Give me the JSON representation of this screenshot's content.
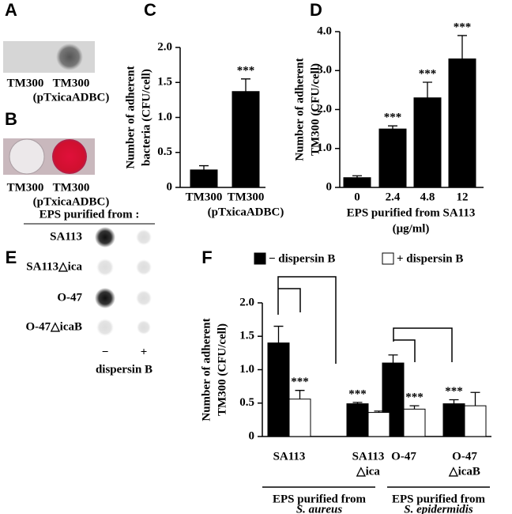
{
  "panels": {
    "letters": [
      "A",
      "B",
      "C",
      "D",
      "E",
      "F"
    ],
    "a_labels": [
      [
        "TM300"
      ],
      [
        "TM300",
        "(pTxicaADBC)"
      ]
    ],
    "b_labels": [
      [
        "TM300"
      ],
      [
        "TM300",
        "(pTxicaADBC)"
      ]
    ],
    "e_heading": "EPS purified from :",
    "e_rows": [
      "SA113",
      "SA113△ica",
      "O-47",
      "O-47△icaB"
    ],
    "e_columns": [
      "−",
      "+"
    ],
    "e_footer": "dispersin B"
  },
  "chart_data": [
    {
      "type": "bar",
      "ylabel": [
        "Number of adherent",
        "bacteria (CFU/cell)"
      ],
      "categories": [
        [
          "TM300"
        ],
        [
          "TM300",
          "(pTxicaADBC)"
        ]
      ],
      "series": [
        {
          "name": null,
          "color": "#000000",
          "values": [
            0.25,
            1.37
          ],
          "errors": [
            0.06,
            0.18
          ],
          "annotations": [
            null,
            "***"
          ]
        }
      ],
      "ylim": [
        0,
        2.0
      ],
      "yticks": [
        0,
        0.5,
        {
          "value": 1.0,
          "label": "1.0"
        },
        1.5,
        {
          "value": 2.0,
          "label": "2.0"
        }
      ]
    },
    {
      "type": "bar",
      "ylabel": [
        "Number of adherent",
        "TM300 (CFU/cell)"
      ],
      "categories": [
        [
          "0"
        ],
        [
          "2.4"
        ],
        [
          "4.8"
        ],
        [
          "12"
        ]
      ],
      "xlabel": [
        "EPS  purified from SA113",
        "(μg/ml)"
      ],
      "series": [
        {
          "name": null,
          "color": "#000000",
          "values": [
            0.25,
            1.5,
            2.3,
            3.3
          ],
          "errors": [
            0.05,
            0.08,
            0.4,
            0.6
          ],
          "annotations": [
            null,
            "***",
            "***",
            "***"
          ]
        }
      ],
      "ylim": [
        0,
        4.0
      ],
      "yticks": [
        0,
        {
          "value": 1.0,
          "label": "1.0"
        },
        {
          "value": 2.0,
          "label": "2.0"
        },
        {
          "value": 3.0,
          "label": "3.0"
        },
        {
          "value": 4.0,
          "label": "4.0"
        }
      ]
    },
    {
      "type": "bar",
      "ylabel": [
        "Number of adherent",
        "TM300 (CFU/cell)"
      ],
      "categories": [
        [
          "SA113"
        ],
        [
          "SA113",
          "△ica"
        ],
        [
          "O-47"
        ],
        [
          "O-47",
          "△icaB"
        ]
      ],
      "groups": [
        {
          "label": [
            "EPS purified from",
            "S. aureus"
          ]
        },
        {
          "label": [
            "EPS purified from",
            "S. epidermidis"
          ]
        }
      ],
      "series": [
        {
          "name": "− dispersin B",
          "color": "#000000",
          "values": [
            1.4,
            0.49,
            1.1,
            0.49
          ],
          "errors": [
            0.25,
            0.02,
            0.12,
            0.06
          ],
          "annotations": [
            null,
            "***",
            null,
            "***"
          ]
        },
        {
          "name": "+ dispersin B",
          "color": "#ffffff",
          "values": [
            0.56,
            0.36,
            0.41,
            0.46
          ],
          "errors": [
            0.13,
            0.02,
            0.05,
            0.2
          ],
          "annotations": [
            "***",
            null,
            "***",
            null
          ]
        }
      ],
      "ylim": [
        0,
        2.0
      ],
      "yticks": [
        0,
        0.5,
        {
          "value": 1.0,
          "label": "1.0"
        },
        1.5,
        {
          "value": 2.0,
          "label": "2.0"
        }
      ],
      "legend": "top"
    }
  ]
}
